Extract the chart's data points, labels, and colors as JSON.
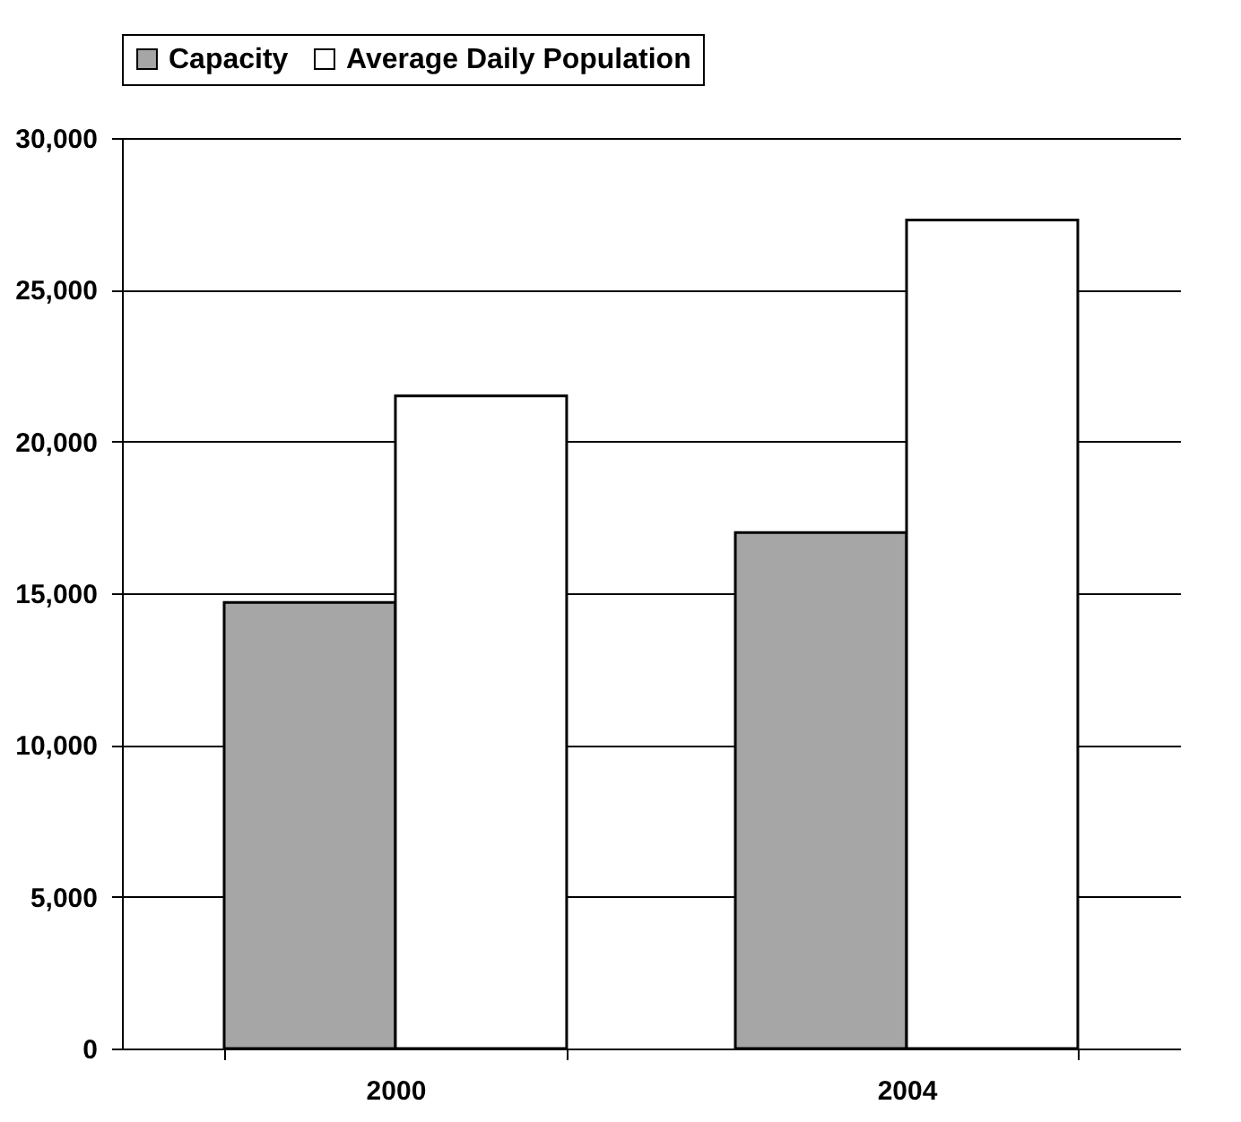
{
  "chart_data": {
    "type": "bar",
    "categories": [
      "2000",
      "2004"
    ],
    "series": [
      {
        "name": "Capacity",
        "color": "#a6a6a6",
        "values": [
          14700,
          17000
        ]
      },
      {
        "name": "Average Daily Population",
        "color": "#ffffff",
        "values": [
          21500,
          27300
        ]
      }
    ],
    "ylim": [
      0,
      30000
    ],
    "yticks": [
      {
        "value": 0,
        "label": "0"
      },
      {
        "value": 5000,
        "label": "5,000"
      },
      {
        "value": 10000,
        "label": "10,000"
      },
      {
        "value": 15000,
        "label": "15,000"
      },
      {
        "value": 20000,
        "label": "20,000"
      },
      {
        "value": 25000,
        "label": "25,000"
      },
      {
        "value": 30000,
        "label": "30,000"
      }
    ],
    "grid": "y",
    "legend": "top"
  }
}
